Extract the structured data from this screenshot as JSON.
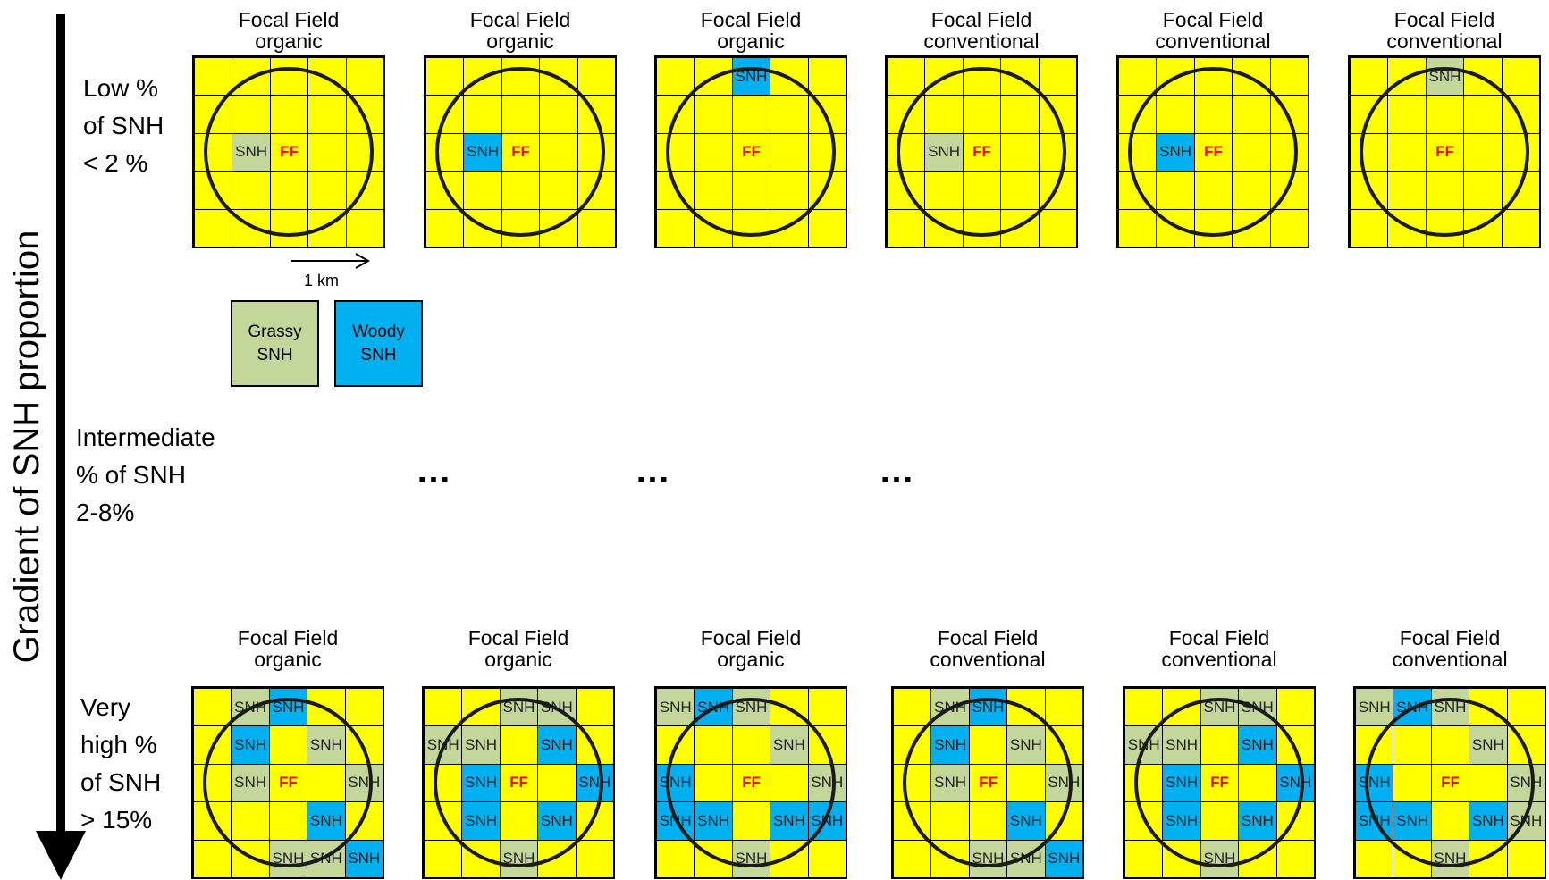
{
  "axis": {
    "label": "Gradient of SNH proportion"
  },
  "rows": [
    {
      "label": "Low %\nof SNH\n< 2 %"
    },
    {
      "label": "Intermediate\n% of SNH\n2-8%"
    },
    {
      "label": "Very\nhigh %\nof SNH\n> 15%"
    }
  ],
  "ellipses": [
    "…",
    "…",
    "…"
  ],
  "scale": {
    "label": "1 km"
  },
  "legend": {
    "grassy": "Grassy\nSNH",
    "woody": "Woody\nSNH"
  },
  "colors": {
    "field": "#ffff00",
    "grassy": "#c4d79b",
    "woody": "#00b0f0",
    "ff": "#ff0000"
  },
  "cell_labels": {
    "snh": "SNH",
    "ff": "FF"
  },
  "top_panels": [
    {
      "title": "Focal Field",
      "type": "organic",
      "cells": [
        {
          "r": 2,
          "c": 1,
          "kind": "grassy",
          "text": "SNH"
        }
      ]
    },
    {
      "title": "Focal Field",
      "type": "organic",
      "cells": [
        {
          "r": 2,
          "c": 1,
          "kind": "woody",
          "text": "SNH"
        }
      ]
    },
    {
      "title": "Focal Field",
      "type": "organic",
      "cells": [
        {
          "r": 0,
          "c": 2,
          "kind": "woody",
          "text": "SNH"
        }
      ]
    },
    {
      "title": "Focal Field",
      "type": "conventional",
      "cells": [
        {
          "r": 2,
          "c": 1,
          "kind": "grassy",
          "text": "SNH"
        }
      ]
    },
    {
      "title": "Focal Field",
      "type": "conventional",
      "cells": [
        {
          "r": 2,
          "c": 1,
          "kind": "woody",
          "text": "SNH"
        }
      ]
    },
    {
      "title": "Focal Field",
      "type": "conventional",
      "cells": [
        {
          "r": 0,
          "c": 2,
          "kind": "grassy",
          "text": "SNH"
        }
      ]
    }
  ],
  "bottom_panels": [
    {
      "title": "Focal Field",
      "type": "organic",
      "cells": [
        {
          "r": 0,
          "c": 1,
          "kind": "grassy",
          "text": "SNH"
        },
        {
          "r": 0,
          "c": 2,
          "kind": "woody",
          "text": "SNH"
        },
        {
          "r": 1,
          "c": 1,
          "kind": "woody",
          "text": "SNH"
        },
        {
          "r": 1,
          "c": 3,
          "kind": "grassy",
          "text": "SNH"
        },
        {
          "r": 2,
          "c": 1,
          "kind": "grassy",
          "text": "SNH"
        },
        {
          "r": 2,
          "c": 4,
          "kind": "grassy",
          "text": "SNH"
        },
        {
          "r": 3,
          "c": 3,
          "kind": "woody",
          "text": "SNH"
        },
        {
          "r": 4,
          "c": 2,
          "kind": "grassy",
          "text": "SNH"
        },
        {
          "r": 4,
          "c": 3,
          "kind": "grassy",
          "text": "SNH"
        },
        {
          "r": 4,
          "c": 4,
          "kind": "woody",
          "text": "SNH"
        }
      ]
    },
    {
      "title": "Focal Field",
      "type": "organic",
      "cells": [
        {
          "r": 0,
          "c": 2,
          "kind": "grassy",
          "text": "SNH"
        },
        {
          "r": 0,
          "c": 3,
          "kind": "grassy",
          "text": "SNH"
        },
        {
          "r": 1,
          "c": 0,
          "kind": "grassy",
          "text": "SNH"
        },
        {
          "r": 1,
          "c": 1,
          "kind": "grassy",
          "text": "SNH"
        },
        {
          "r": 1,
          "c": 3,
          "kind": "woody",
          "text": "SNH"
        },
        {
          "r": 2,
          "c": 1,
          "kind": "woody",
          "text": "SNH"
        },
        {
          "r": 2,
          "c": 4,
          "kind": "woody",
          "text": "SNH"
        },
        {
          "r": 3,
          "c": 1,
          "kind": "woody",
          "text": "SNH"
        },
        {
          "r": 3,
          "c": 3,
          "kind": "woody",
          "text": "SNH"
        },
        {
          "r": 4,
          "c": 2,
          "kind": "grassy",
          "text": "SNH"
        }
      ]
    },
    {
      "title": "Focal Field",
      "type": "organic",
      "cells": [
        {
          "r": 0,
          "c": 0,
          "kind": "grassy",
          "text": "SNH"
        },
        {
          "r": 0,
          "c": 1,
          "kind": "woody",
          "text": "SNH"
        },
        {
          "r": 0,
          "c": 2,
          "kind": "grassy",
          "text": "SNH"
        },
        {
          "r": 1,
          "c": 3,
          "kind": "grassy",
          "text": "SNH"
        },
        {
          "r": 2,
          "c": 0,
          "kind": "woody",
          "text": "SNH"
        },
        {
          "r": 2,
          "c": 4,
          "kind": "grassy",
          "text": "SNH"
        },
        {
          "r": 3,
          "c": 0,
          "kind": "woody",
          "text": "SNH"
        },
        {
          "r": 3,
          "c": 1,
          "kind": "woody",
          "text": "SNH"
        },
        {
          "r": 3,
          "c": 3,
          "kind": "woody",
          "text": "SNH"
        },
        {
          "r": 3,
          "c": 4,
          "kind": "woody",
          "text": "SNH"
        },
        {
          "r": 4,
          "c": 2,
          "kind": "grassy",
          "text": "SNH"
        }
      ]
    },
    {
      "title": "Focal Field",
      "type": "conventional",
      "cells": [
        {
          "r": 0,
          "c": 1,
          "kind": "grassy",
          "text": "SNH"
        },
        {
          "r": 0,
          "c": 2,
          "kind": "woody",
          "text": "SNH"
        },
        {
          "r": 1,
          "c": 1,
          "kind": "woody",
          "text": "SNH"
        },
        {
          "r": 1,
          "c": 3,
          "kind": "grassy",
          "text": "SNH"
        },
        {
          "r": 2,
          "c": 1,
          "kind": "grassy",
          "text": "SNH"
        },
        {
          "r": 2,
          "c": 4,
          "kind": "grassy",
          "text": "SNH"
        },
        {
          "r": 3,
          "c": 3,
          "kind": "woody",
          "text": "SNH"
        },
        {
          "r": 4,
          "c": 2,
          "kind": "grassy",
          "text": "SNH"
        },
        {
          "r": 4,
          "c": 3,
          "kind": "grassy",
          "text": "SNH"
        },
        {
          "r": 4,
          "c": 4,
          "kind": "woody",
          "text": "SNH"
        }
      ]
    },
    {
      "title": "Focal Field",
      "type": "conventional",
      "cells": [
        {
          "r": 0,
          "c": 2,
          "kind": "grassy",
          "text": "SNH"
        },
        {
          "r": 0,
          "c": 3,
          "kind": "grassy",
          "text": "SNH"
        },
        {
          "r": 1,
          "c": 0,
          "kind": "grassy",
          "text": "SNH"
        },
        {
          "r": 1,
          "c": 1,
          "kind": "grassy",
          "text": "SNH"
        },
        {
          "r": 1,
          "c": 3,
          "kind": "woody",
          "text": "SNH"
        },
        {
          "r": 2,
          "c": 1,
          "kind": "woody",
          "text": "SNH"
        },
        {
          "r": 2,
          "c": 4,
          "kind": "woody",
          "text": "SNH"
        },
        {
          "r": 3,
          "c": 1,
          "kind": "woody",
          "text": "SNH"
        },
        {
          "r": 3,
          "c": 3,
          "kind": "woody",
          "text": "SNH"
        },
        {
          "r": 4,
          "c": 2,
          "kind": "grassy",
          "text": "SNH"
        }
      ]
    },
    {
      "title": "Focal Field",
      "type": "conventional",
      "cells": [
        {
          "r": 0,
          "c": 0,
          "kind": "grassy",
          "text": "SNH"
        },
        {
          "r": 0,
          "c": 1,
          "kind": "woody",
          "text": "SNH"
        },
        {
          "r": 0,
          "c": 2,
          "kind": "grassy",
          "text": "SNH"
        },
        {
          "r": 1,
          "c": 3,
          "kind": "grassy",
          "text": "SNH"
        },
        {
          "r": 2,
          "c": 0,
          "kind": "woody",
          "text": "SNH"
        },
        {
          "r": 2,
          "c": 4,
          "kind": "grassy",
          "text": "SNH"
        },
        {
          "r": 3,
          "c": 0,
          "kind": "woody",
          "text": "SNH"
        },
        {
          "r": 3,
          "c": 1,
          "kind": "woody",
          "text": "SNH"
        },
        {
          "r": 3,
          "c": 3,
          "kind": "woody",
          "text": "SNH"
        },
        {
          "r": 3,
          "c": 4,
          "kind": "grassy",
          "text": "SNH"
        },
        {
          "r": 4,
          "c": 2,
          "kind": "grassy",
          "text": "SNH"
        }
      ]
    }
  ]
}
